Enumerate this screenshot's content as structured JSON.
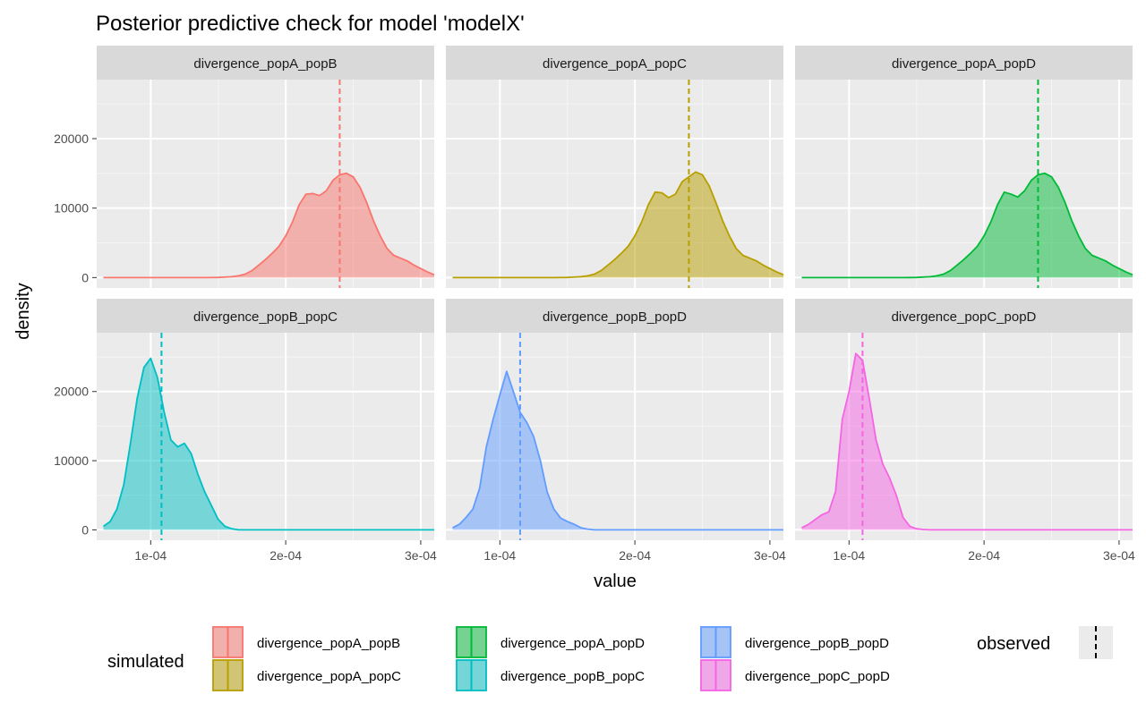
{
  "chart_data": {
    "type": "area",
    "title": "Posterior predictive check for model 'modelX'",
    "xlabel": "value",
    "ylabel": "density",
    "xlim": [
      6e-05,
      0.00031
    ],
    "ylim": [
      -1500,
      28500
    ],
    "x_ticks": [
      0.0001,
      0.0002,
      0.0003
    ],
    "x_tick_labels": [
      "1e-04",
      "2e-04",
      "3e-04"
    ],
    "y_ticks": [
      0,
      10000,
      20000
    ],
    "y_tick_labels": [
      "0",
      "10000",
      "20000"
    ],
    "grid": true,
    "legend_position": "bottom",
    "legend": {
      "simulated_title": "simulated",
      "observed_title": "observed",
      "entries": [
        "divergence_popA_popB",
        "divergence_popA_popC",
        "divergence_popA_popD",
        "divergence_popB_popC",
        "divergence_popB_popD",
        "divergence_popC_popD"
      ]
    },
    "panels": [
      {
        "name": "divergence_popA_popB",
        "color": "#F8766D",
        "observed": 0.00024,
        "x": [
          6.5e-05,
          0.00014,
          0.00015,
          0.00016,
          0.000165,
          0.00017,
          0.000175,
          0.00018,
          0.000185,
          0.00019,
          0.000195,
          0.0002,
          0.000205,
          0.00021,
          0.000215,
          0.00022,
          0.000225,
          0.00023,
          0.000235,
          0.00024,
          0.000245,
          0.00025,
          0.000255,
          0.00026,
          0.000265,
          0.00027,
          0.000275,
          0.00028,
          0.000285,
          0.00029,
          0.000295,
          0.000305,
          0.00031
        ],
        "values": [
          0,
          0,
          20,
          120,
          250,
          500,
          1000,
          1800,
          2600,
          3500,
          4500,
          6000,
          8000,
          10500,
          12000,
          12100,
          11800,
          12500,
          14000,
          14800,
          15000,
          14500,
          13000,
          10800,
          8200,
          6000,
          4200,
          3200,
          2800,
          2400,
          1800,
          800,
          400
        ]
      },
      {
        "name": "divergence_popA_popC",
        "color": "#B79F00",
        "observed": 0.00024,
        "x": [
          6.5e-05,
          0.00014,
          0.00015,
          0.00016,
          0.000165,
          0.00017,
          0.000175,
          0.00018,
          0.000185,
          0.00019,
          0.000195,
          0.0002,
          0.000205,
          0.00021,
          0.000215,
          0.00022,
          0.000225,
          0.00023,
          0.000235,
          0.00024,
          0.000245,
          0.00025,
          0.000255,
          0.00026,
          0.000265,
          0.00027,
          0.000275,
          0.00028,
          0.000285,
          0.00029,
          0.000295,
          0.000305,
          0.00031
        ],
        "values": [
          0,
          0,
          20,
          120,
          250,
          500,
          1000,
          1800,
          2600,
          3500,
          4500,
          6000,
          8000,
          10500,
          12300,
          12200,
          11500,
          12000,
          13800,
          14500,
          15200,
          14800,
          13200,
          10800,
          8200,
          6000,
          4200,
          3200,
          2800,
          2400,
          1800,
          800,
          400
        ]
      },
      {
        "name": "divergence_popA_popD",
        "color": "#00BA38",
        "observed": 0.00024,
        "x": [
          6.5e-05,
          0.00014,
          0.00015,
          0.00016,
          0.000165,
          0.00017,
          0.000175,
          0.00018,
          0.000185,
          0.00019,
          0.000195,
          0.0002,
          0.000205,
          0.00021,
          0.000215,
          0.00022,
          0.000225,
          0.00023,
          0.000235,
          0.00024,
          0.000245,
          0.00025,
          0.000255,
          0.00026,
          0.000265,
          0.00027,
          0.000275,
          0.00028,
          0.000285,
          0.00029,
          0.000295,
          0.000305,
          0.00031
        ],
        "values": [
          0,
          0,
          20,
          120,
          250,
          500,
          1000,
          1800,
          2600,
          3500,
          4500,
          6000,
          8000,
          10500,
          12300,
          12000,
          11600,
          12500,
          14000,
          14800,
          15000,
          14500,
          13000,
          10800,
          8200,
          6000,
          4200,
          3200,
          2800,
          2400,
          1800,
          800,
          400
        ]
      },
      {
        "name": "divergence_popB_popC",
        "color": "#00BFC4",
        "observed": 0.000108,
        "x": [
          6.5e-05,
          7e-05,
          7.5e-05,
          8e-05,
          8.5e-05,
          9e-05,
          9.5e-05,
          0.0001,
          0.000105,
          0.00011,
          0.000115,
          0.00012,
          0.000125,
          0.00013,
          0.000135,
          0.00014,
          0.000145,
          0.00015,
          0.000155,
          0.00016,
          0.000165,
          0.00031
        ],
        "values": [
          500,
          1200,
          3000,
          6500,
          12500,
          19000,
          23500,
          24800,
          22000,
          17000,
          13000,
          12000,
          12500,
          11000,
          8000,
          5500,
          3500,
          1500,
          500,
          150,
          0,
          0
        ]
      },
      {
        "name": "divergence_popB_popD",
        "color": "#619CFF",
        "observed": 0.000115,
        "x": [
          6.5e-05,
          7e-05,
          7.5e-05,
          8e-05,
          8.5e-05,
          9e-05,
          9.5e-05,
          0.0001,
          0.000105,
          0.00011,
          0.000115,
          0.00012,
          0.000125,
          0.00013,
          0.000135,
          0.00014,
          0.000145,
          0.00015,
          0.000155,
          0.00016,
          0.000165,
          0.00017,
          0.000175,
          0.00031
        ],
        "values": [
          300,
          800,
          1800,
          3000,
          6000,
          12000,
          16000,
          19500,
          22900,
          20000,
          17000,
          15500,
          13500,
          10000,
          5500,
          3000,
          1700,
          1200,
          800,
          300,
          100,
          0,
          0,
          0
        ]
      },
      {
        "name": "divergence_popC_popD",
        "color": "#F564E3",
        "observed": 0.00011,
        "x": [
          6.5e-05,
          7e-05,
          7.5e-05,
          8e-05,
          8.5e-05,
          9e-05,
          9.5e-05,
          0.0001,
          0.000105,
          0.00011,
          0.000115,
          0.00012,
          0.000125,
          0.00013,
          0.000135,
          0.00014,
          0.000145,
          0.00015,
          0.000155,
          0.00016,
          0.000165,
          0.00031
        ],
        "values": [
          300,
          800,
          1500,
          2200,
          2600,
          5500,
          16000,
          20000,
          25500,
          24500,
          19000,
          13000,
          9500,
          7500,
          5000,
          1800,
          500,
          150,
          50,
          0,
          0,
          0
        ]
      }
    ]
  }
}
